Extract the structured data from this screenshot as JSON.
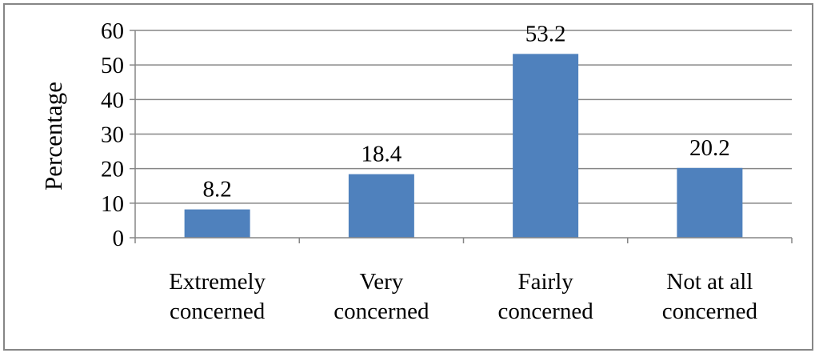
{
  "chart_data": {
    "type": "bar",
    "categories": [
      [
        "Extremely",
        "concerned"
      ],
      [
        "Very",
        "concerned"
      ],
      [
        "Fairly",
        "concerned"
      ],
      [
        "Not at all",
        "concerned"
      ]
    ],
    "values": [
      8.2,
      18.4,
      53.2,
      20.2
    ],
    "data_labels": [
      "8.2",
      "18.4",
      "53.2",
      "20.2"
    ],
    "xlabel": "",
    "ylabel": "Percentage",
    "ylim": [
      0,
      60
    ],
    "yticks": [
      0,
      10,
      20,
      30,
      40,
      50,
      60
    ],
    "grid": true,
    "legend": "none",
    "colors": {
      "bar": "#4f81bd",
      "grid": "#868686",
      "axis": "#868686",
      "border": "#868686"
    }
  }
}
